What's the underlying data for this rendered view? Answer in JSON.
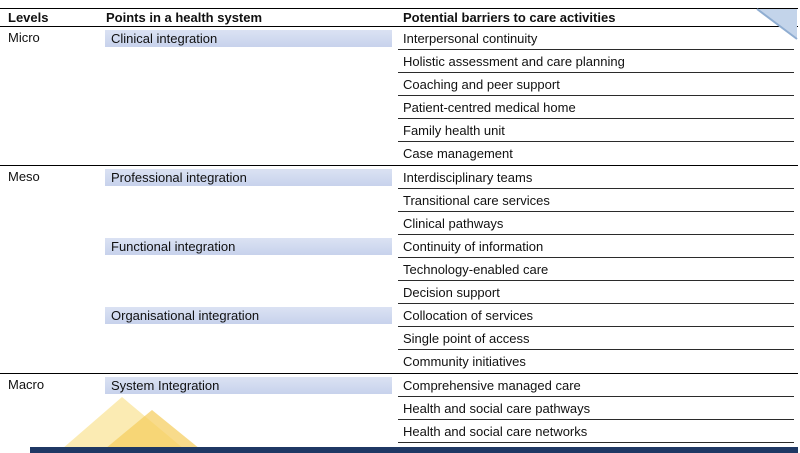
{
  "table": {
    "headers": [
      "Levels",
      "Points in a health system",
      "Potential barriers to care activities"
    ],
    "sections": [
      {
        "level": "Micro",
        "groups": [
          {
            "point": "Clinical integration",
            "barriers": [
              "Interpersonal continuity",
              "Holistic assessment and care planning",
              "Coaching and peer support",
              "Patient-centred medical home",
              "Family health unit",
              "Case management"
            ]
          }
        ]
      },
      {
        "level": "Meso",
        "groups": [
          {
            "point": "Professional integration",
            "barriers": [
              "Interdisciplinary teams",
              "Transitional care services",
              "Clinical pathways"
            ]
          },
          {
            "point": "Functional integration",
            "barriers": [
              "Continuity of information",
              "Technology-enabled care",
              "Decision support"
            ]
          },
          {
            "point": "Organisational integration",
            "barriers": [
              "Collocation of services",
              "Single point of access",
              "Community initiatives"
            ]
          }
        ]
      },
      {
        "level": "Macro",
        "groups": [
          {
            "point": "System Integration",
            "barriers": [
              "Comprehensive managed care",
              "Health and social care pathways",
              "Health and social care networks"
            ]
          }
        ]
      }
    ]
  },
  "decorations": {
    "point_box_color": "#c7d2ec",
    "corner_fill": "#c3d4ea",
    "corner_edge": "#8fadd1",
    "mountain_light": "#fae7a6",
    "mountain_dark": "#f5cd5e",
    "bottom_bar_color": "#1f3864"
  }
}
